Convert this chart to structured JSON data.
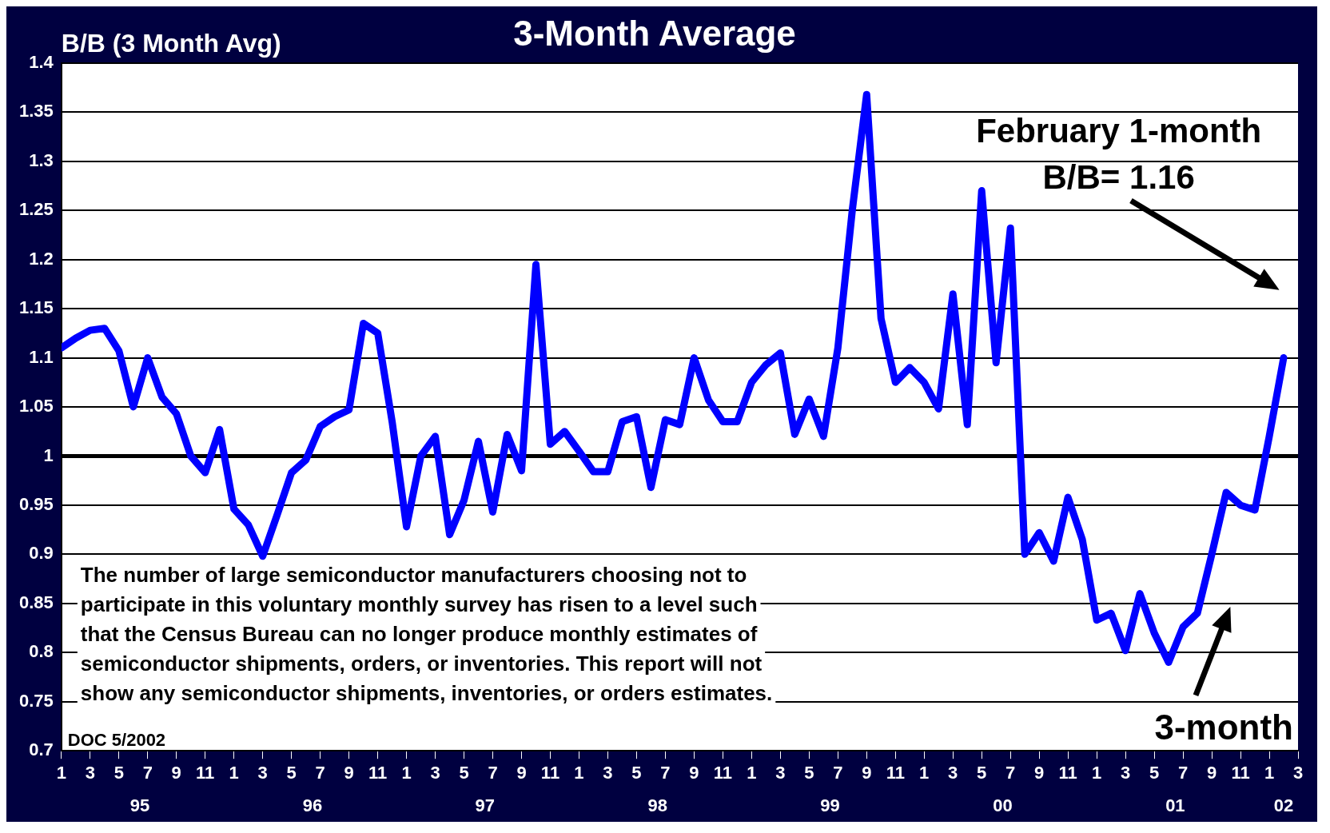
{
  "chart_data": {
    "type": "line",
    "title": "3-Month Average",
    "ylabel": "B/B (3 Month Avg)",
    "x": [
      "1995-01",
      "1995-02",
      "1995-03",
      "1995-04",
      "1995-05",
      "1995-06",
      "1995-07",
      "1995-08",
      "1995-09",
      "1995-10",
      "1995-11",
      "1995-12",
      "1996-01",
      "1996-02",
      "1996-03",
      "1996-04",
      "1996-05",
      "1996-06",
      "1996-07",
      "1996-08",
      "1996-09",
      "1996-10",
      "1996-11",
      "1996-12",
      "1997-01",
      "1997-02",
      "1997-03",
      "1997-04",
      "1997-05",
      "1997-06",
      "1997-07",
      "1997-08",
      "1997-09",
      "1997-10",
      "1997-11",
      "1997-12",
      "1998-01",
      "1998-02",
      "1998-03",
      "1998-04",
      "1998-05",
      "1998-06",
      "1998-07",
      "1998-08",
      "1998-09",
      "1998-10",
      "1998-11",
      "1998-12",
      "1999-01",
      "1999-02",
      "1999-03",
      "1999-04",
      "1999-05",
      "1999-06",
      "1999-07",
      "1999-08",
      "1999-09",
      "1999-10",
      "1999-11",
      "1999-12",
      "2000-01",
      "2000-02",
      "2000-03",
      "2000-04",
      "2000-05",
      "2000-06",
      "2000-07",
      "2000-08",
      "2000-09",
      "2000-10",
      "2000-11",
      "2000-12",
      "2001-01",
      "2001-02",
      "2001-03",
      "2001-04",
      "2001-05",
      "2001-06",
      "2001-07",
      "2001-08",
      "2001-09",
      "2001-10",
      "2001-11",
      "2001-12",
      "2002-01",
      "2002-02"
    ],
    "series": [
      {
        "color": "#0000ff",
        "values": [
          1.11,
          1.12,
          1.128,
          1.13,
          1.107,
          1.05,
          1.1,
          1.06,
          1.043,
          1.0,
          0.983,
          1.027,
          0.946,
          0.93,
          0.898,
          0.94,
          0.983,
          0.996,
          1.03,
          1.04,
          1.047,
          1.135,
          1.125,
          1.035,
          0.928,
          1.0,
          1.02,
          0.92,
          0.955,
          1.015,
          0.943,
          1.022,
          0.985,
          1.195,
          1.012,
          1.025,
          1.005,
          0.984,
          0.984,
          1.035,
          1.04,
          0.968,
          1.037,
          1.032,
          1.1,
          1.057,
          1.035,
          1.035,
          1.075,
          1.093,
          1.105,
          1.022,
          1.058,
          1.02,
          1.11,
          1.25,
          1.368,
          1.14,
          1.075,
          1.09,
          1.075,
          1.048,
          1.165,
          1.032,
          1.27,
          1.095,
          1.232,
          0.9,
          0.922,
          0.893,
          0.958,
          0.915,
          0.833,
          0.84,
          0.802,
          0.86,
          0.82,
          0.79,
          0.826,
          0.84,
          0.9,
          0.963,
          0.95,
          0.945,
          1.02,
          1.1
        ]
      }
    ],
    "xlim": [
      "1995-01",
      "2002-03"
    ],
    "xticks": [
      {
        "value": "1995-01",
        "label": "1"
      },
      {
        "value": "1995-03",
        "label": "3"
      },
      {
        "value": "1995-05",
        "label": "5"
      },
      {
        "value": "1995-07",
        "label": "7"
      },
      {
        "value": "1995-09",
        "label": "9"
      },
      {
        "value": "1995-11",
        "label": "11"
      },
      {
        "value": "1996-01",
        "label": "1"
      },
      {
        "value": "1996-03",
        "label": "3"
      },
      {
        "value": "1996-05",
        "label": "5"
      },
      {
        "value": "1996-07",
        "label": "7"
      },
      {
        "value": "1996-09",
        "label": "9"
      },
      {
        "value": "1996-11",
        "label": "11"
      },
      {
        "value": "1997-01",
        "label": "1"
      },
      {
        "value": "1997-03",
        "label": "3"
      },
      {
        "value": "1997-05",
        "label": "5"
      },
      {
        "value": "1997-07",
        "label": "7"
      },
      {
        "value": "1997-09",
        "label": "9"
      },
      {
        "value": "1997-11",
        "label": "11"
      },
      {
        "value": "1998-01",
        "label": "1"
      },
      {
        "value": "1998-03",
        "label": "3"
      },
      {
        "value": "1998-05",
        "label": "5"
      },
      {
        "value": "1998-07",
        "label": "7"
      },
      {
        "value": "1998-09",
        "label": "9"
      },
      {
        "value": "1998-11",
        "label": "11"
      },
      {
        "value": "1999-01",
        "label": "1"
      },
      {
        "value": "1999-03",
        "label": "3"
      },
      {
        "value": "1999-05",
        "label": "5"
      },
      {
        "value": "1999-07",
        "label": "7"
      },
      {
        "value": "1999-09",
        "label": "9"
      },
      {
        "value": "1999-11",
        "label": "11"
      },
      {
        "value": "2000-01",
        "label": "1"
      },
      {
        "value": "2000-03",
        "label": "3"
      },
      {
        "value": "2000-05",
        "label": "5"
      },
      {
        "value": "2000-07",
        "label": "7"
      },
      {
        "value": "2000-09",
        "label": "9"
      },
      {
        "value": "2000-11",
        "label": "11"
      },
      {
        "value": "2001-01",
        "label": "1"
      },
      {
        "value": "2001-03",
        "label": "3"
      },
      {
        "value": "2001-05",
        "label": "5"
      },
      {
        "value": "2001-07",
        "label": "7"
      },
      {
        "value": "2001-09",
        "label": "9"
      },
      {
        "value": "2001-11",
        "label": "11"
      },
      {
        "value": "2002-01",
        "label": "1"
      },
      {
        "value": "2002-03",
        "label": "3"
      }
    ],
    "x2lim": [
      "1995-01",
      "2002-03"
    ],
    "x2ticks": [
      {
        "value": "1995-06-15",
        "label": "95"
      },
      {
        "value": "1996-06-15",
        "label": "96"
      },
      {
        "value": "1997-06-15",
        "label": "97"
      },
      {
        "value": "1998-06-15",
        "label": "98"
      },
      {
        "value": "1999-06-15",
        "label": "99"
      },
      {
        "value": "2000-06-15",
        "label": "00"
      },
      {
        "value": "2001-06-15",
        "label": "01"
      },
      {
        "value": "2002-02",
        "label": "02"
      }
    ],
    "ylim": [
      0.7,
      1.4
    ],
    "yticks": [
      0.7,
      0.75,
      0.8,
      0.85,
      0.9,
      0.95,
      1,
      1.05,
      1.1,
      1.15,
      1.2,
      1.25,
      1.3,
      1.35,
      1.4
    ],
    "grid": "y",
    "legend": false,
    "marker": "none",
    "line_style": "solid",
    "ref_lines": [
      {
        "axis": "y",
        "value": 1,
        "color": "#000000"
      }
    ],
    "annotations": [
      "The number of large semiconductor manufacturers choosing not to\nparticipate in this voluntary monthly survey has risen to a level such\nthat the Census Bureau can no longer produce monthly estimates of\nsemiconductor shipments, orders, or inventories. This report will not\nshow any semiconductor shipments, inventories, or orders estimates.",
      "DOC 5/2002",
      "February 1-month\nB/B= 1.16",
      "3-month"
    ]
  }
}
